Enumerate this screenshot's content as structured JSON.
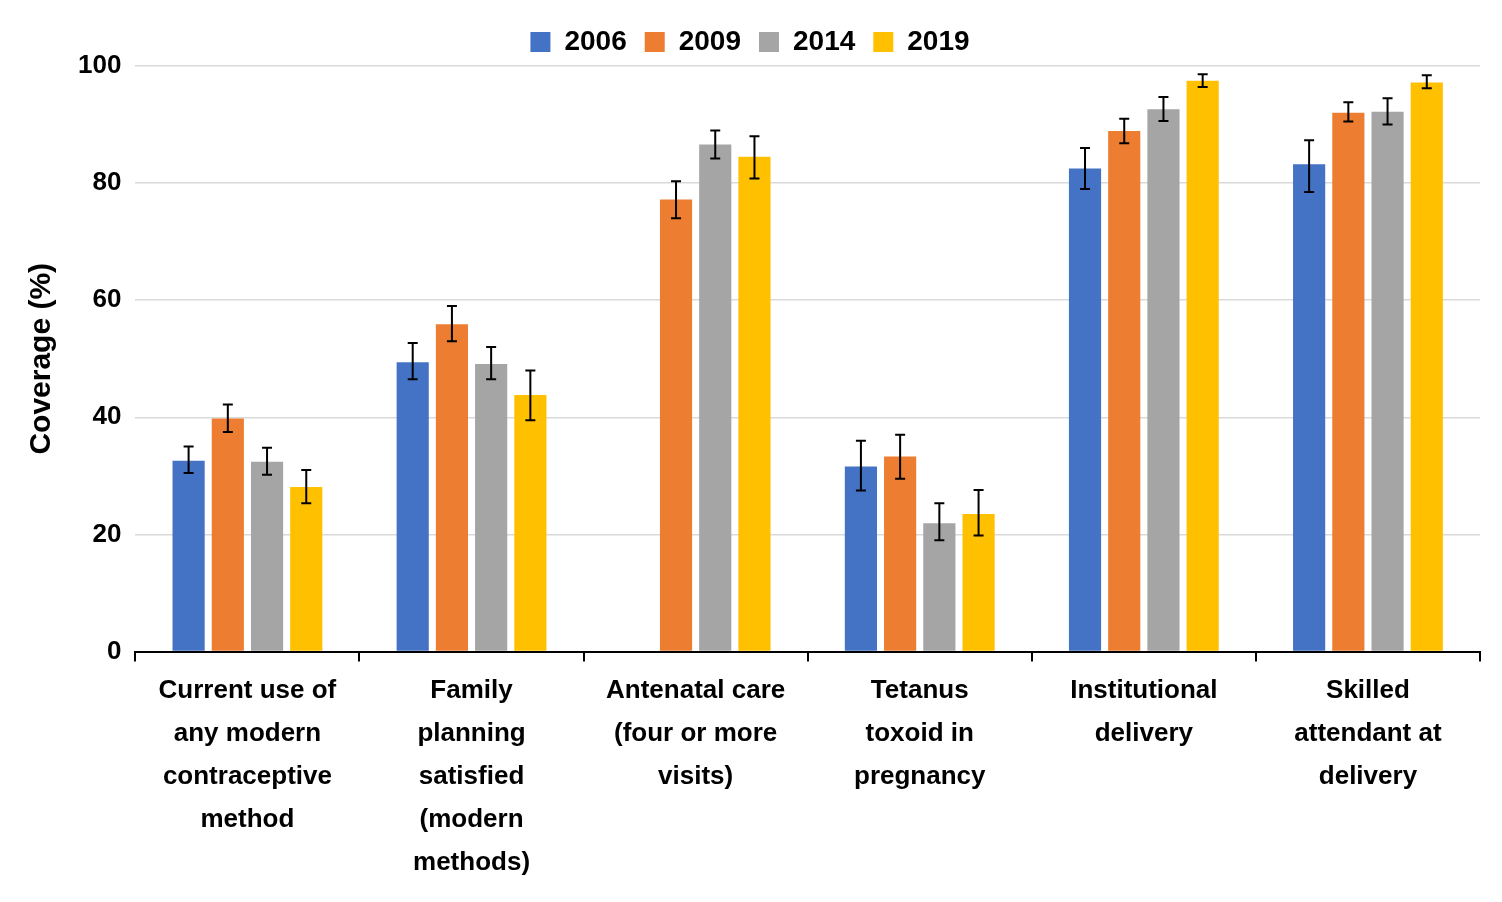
{
  "chart_data": {
    "type": "bar",
    "y_label": "Coverage (%)",
    "categories": [
      [
        "Current use of",
        "any modern",
        "contraceptive",
        "method"
      ],
      [
        "Family",
        "planning",
        "satisfied",
        "(modern",
        "methods)"
      ],
      [
        "Antenatal care",
        "(four or more",
        "visits)"
      ],
      [
        "Tetanus",
        "toxoid in",
        "pregnancy"
      ],
      [
        "Institutional",
        "delivery"
      ],
      [
        "Skilled",
        "attendant at",
        "delivery"
      ]
    ],
    "series": [
      {
        "name": "2006",
        "color": "#4472C4",
        "values": [
          32.6,
          49.4,
          null,
          31.6,
          82.5,
          83.2
        ],
        "errors": [
          [
            30.5,
            35.0
          ],
          [
            46.5,
            52.7
          ],
          null,
          [
            27.5,
            36.0
          ],
          [
            79.0,
            86.0
          ],
          [
            78.5,
            87.3
          ]
        ]
      },
      {
        "name": "2009",
        "color": "#ED7D31",
        "values": [
          39.8,
          55.9,
          77.2,
          33.3,
          88.9,
          92.0
        ],
        "errors": [
          [
            37.5,
            42.2
          ],
          [
            53.0,
            59.0
          ],
          [
            74.0,
            80.3
          ],
          [
            29.5,
            37.0
          ],
          [
            86.8,
            91.0
          ],
          [
            90.5,
            93.8
          ]
        ]
      },
      {
        "name": "2014",
        "color": "#A5A5A5",
        "values": [
          32.4,
          49.1,
          86.6,
          21.9,
          92.6,
          92.2
        ],
        "errors": [
          [
            30.2,
            34.8
          ],
          [
            46.5,
            52.0
          ],
          [
            84.2,
            89.0
          ],
          [
            19.0,
            25.3
          ],
          [
            90.6,
            94.7
          ],
          [
            90.0,
            94.5
          ]
        ]
      },
      {
        "name": "2019",
        "color": "#FFC000",
        "values": [
          28.1,
          43.8,
          84.5,
          23.5,
          97.5,
          97.2
        ],
        "errors": [
          [
            25.3,
            31.0
          ],
          [
            39.5,
            48.0
          ],
          [
            80.8,
            88.0
          ],
          [
            19.8,
            27.6
          ],
          [
            96.4,
            98.6
          ],
          [
            96.2,
            98.4
          ]
        ]
      }
    ],
    "ylim": [
      0,
      100
    ],
    "yticks": [
      0,
      20,
      40,
      60,
      80,
      100
    ],
    "grid": true,
    "legend": "top"
  }
}
